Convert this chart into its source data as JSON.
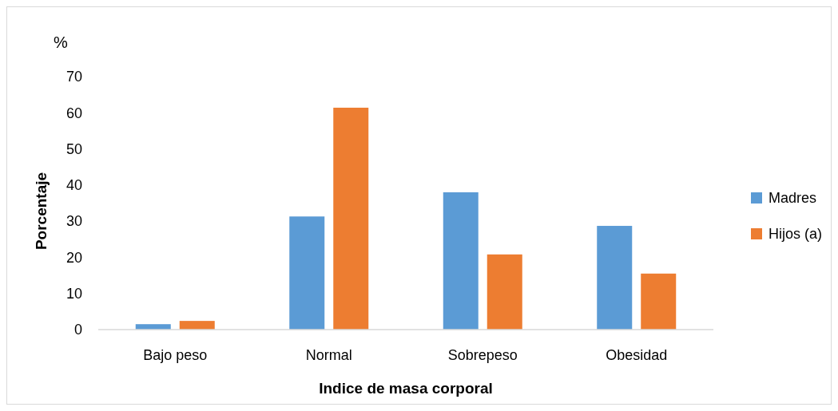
{
  "chart_data": {
    "type": "bar",
    "xlabel": "Indice de masa corporal",
    "ylabel": "Porcentaje",
    "annotations": [
      "%"
    ],
    "categories": [
      "Bajo peso",
      "Normal",
      "Sobrepeso",
      "Obesidad"
    ],
    "series": [
      {
        "name": "Madres",
        "color": "#5b9bd5",
        "values": [
          1.5,
          31.3,
          38,
          28.7
        ]
      },
      {
        "name": "Hijos (a)",
        "color": "#ed7d31",
        "values": [
          2.4,
          61.4,
          20.8,
          15.5
        ]
      }
    ],
    "ylim": [
      0,
      70
    ],
    "yticks": [
      0,
      10,
      20,
      30,
      40,
      50,
      60,
      70
    ],
    "grid": false,
    "legend": "right"
  }
}
